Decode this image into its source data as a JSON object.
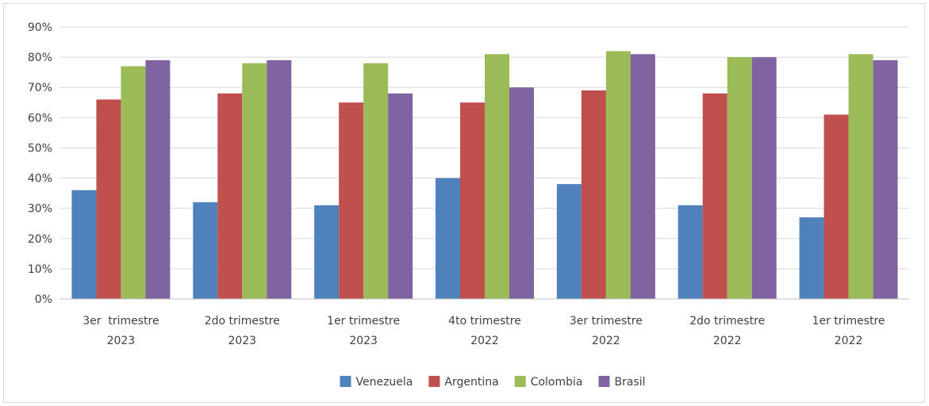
{
  "chart_data": {
    "type": "bar",
    "title": "",
    "xlabel": "",
    "ylabel": "",
    "ylim": [
      0,
      90
    ],
    "y_unit": "%",
    "yticks": [
      "0%",
      "10%",
      "20%",
      "30%",
      "40%",
      "50%",
      "60%",
      "70%",
      "80%",
      "90%"
    ],
    "grid": true,
    "legend_position": "bottom",
    "categories": [
      [
        "3er  trimestre",
        "2023"
      ],
      [
        "2do trimestre",
        "2023"
      ],
      [
        "1er trimestre",
        "2023"
      ],
      [
        "4to trimestre",
        "2022"
      ],
      [
        "3er trimestre",
        "2022"
      ],
      [
        "2do trimestre",
        "2022"
      ],
      [
        "1er trimestre",
        "2022"
      ]
    ],
    "series": [
      {
        "name": "Venezuela",
        "color": "#4f81bd",
        "values": [
          36,
          32,
          31,
          40,
          38,
          31,
          27
        ]
      },
      {
        "name": "Argentina",
        "color": "#c0504d",
        "values": [
          66,
          68,
          65,
          65,
          69,
          68,
          61
        ]
      },
      {
        "name": "Colombia",
        "color": "#9bbb59",
        "values": [
          77,
          78,
          78,
          81,
          82,
          80,
          81
        ]
      },
      {
        "name": "Brasil",
        "color": "#8064a2",
        "values": [
          79,
          79,
          68,
          70,
          81,
          80,
          79
        ]
      }
    ]
  }
}
